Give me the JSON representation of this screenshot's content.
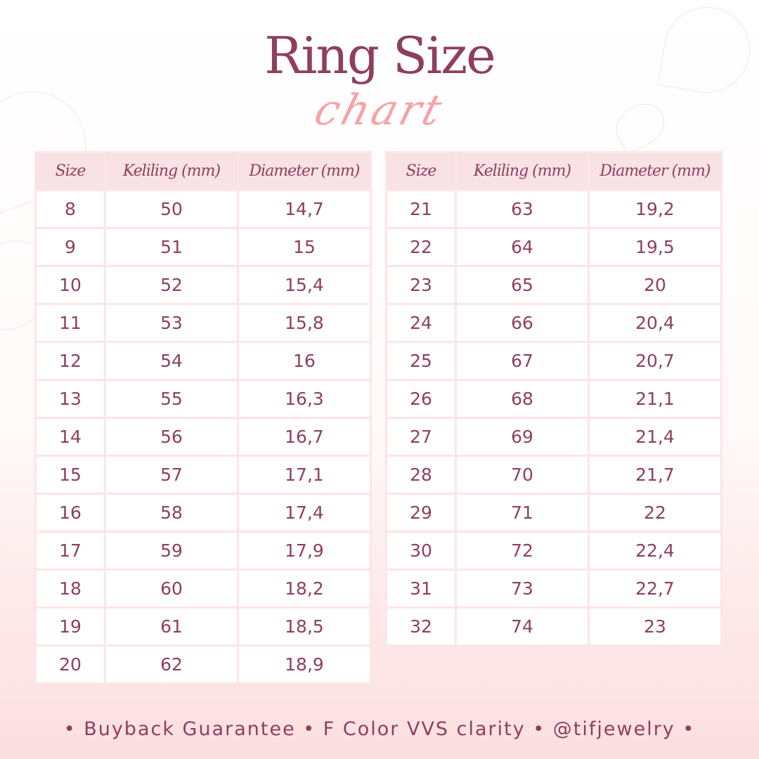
{
  "title": "Ring Size",
  "subtitle": "chart",
  "headers": [
    "Size",
    "Keliling (mm)",
    "Diameter (mm)"
  ],
  "left_rows": [
    [
      "8",
      "50",
      "14,7"
    ],
    [
      "9",
      "51",
      "15"
    ],
    [
      "10",
      "52",
      "15,4"
    ],
    [
      "11",
      "53",
      "15,8"
    ],
    [
      "12",
      "54",
      "16"
    ],
    [
      "13",
      "55",
      "16,3"
    ],
    [
      "14",
      "56",
      "16,7"
    ],
    [
      "15",
      "57",
      "17,1"
    ],
    [
      "16",
      "58",
      "17,4"
    ],
    [
      "17",
      "59",
      "17,9"
    ],
    [
      "18",
      "60",
      "18,2"
    ],
    [
      "19",
      "61",
      "18,5"
    ],
    [
      "20",
      "62",
      "18,9"
    ]
  ],
  "right_rows": [
    [
      "21",
      "63",
      "19,2"
    ],
    [
      "22",
      "64",
      "19,5"
    ],
    [
      "23",
      "65",
      "20"
    ],
    [
      "24",
      "66",
      "20,4"
    ],
    [
      "25",
      "67",
      "20,7"
    ],
    [
      "26",
      "68",
      "21,1"
    ],
    [
      "27",
      "69",
      "21,4"
    ],
    [
      "28",
      "70",
      "21,7"
    ],
    [
      "29",
      "71",
      "22"
    ],
    [
      "30",
      "72",
      "22,4"
    ],
    [
      "31",
      "73",
      "22,7"
    ],
    [
      "32",
      "74",
      "23"
    ]
  ],
  "footer": "• Buyback Guarantee • F Color VVS clarity • @tifjewelry •",
  "colors": {
    "text": "#8e3f5f",
    "accent": "#f7a3a6",
    "header_bg": "#f8e2e5",
    "border": "#fde5e7"
  },
  "decor": [
    "orchid-illustration-left",
    "orchid-illustration-top-right"
  ]
}
